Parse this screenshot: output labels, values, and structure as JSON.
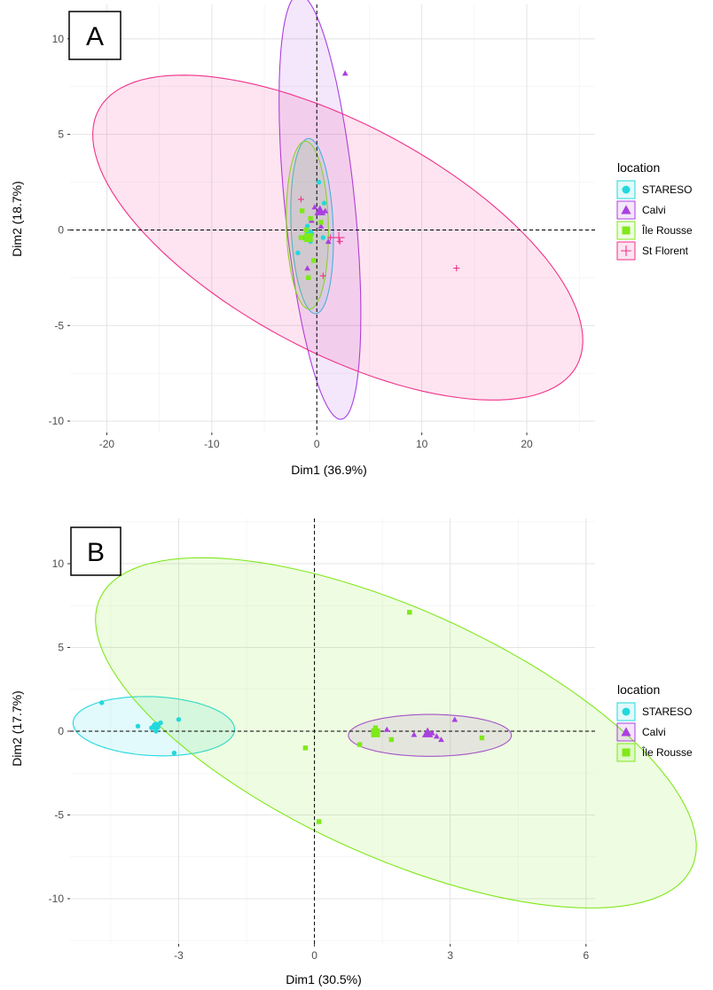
{
  "colors": {
    "STARESO": "#22d8de",
    "Calvi": "#a93fe0",
    "Île Rousse": "#7fe81a",
    "St Florent": "#f0328a"
  },
  "chart_data": [
    {
      "type": "scatter",
      "panel_label": "A",
      "xlabel": "Dim1 (36.9%)",
      "ylabel": "Dim2 (18.7%)",
      "xlim": [
        -23.5,
        26.5
      ],
      "ylim": [
        -10.6,
        11.8
      ],
      "xticks": [
        -20,
        -10,
        0,
        10,
        20
      ],
      "yticks": [
        -10,
        -5,
        0,
        5,
        10
      ],
      "grid": true,
      "reference_lines": {
        "x": 0,
        "y": 0
      },
      "legend": {
        "title": "location",
        "position": "right",
        "entries": [
          "STARESO",
          "Calvi",
          "Île Rousse",
          "St Florent"
        ]
      },
      "series": [
        {
          "name": "STARESO",
          "marker": "circle",
          "points": [
            [
              0.2,
              2.5
            ],
            [
              -1.8,
              -1.2
            ],
            [
              0.6,
              -0.4
            ],
            [
              -0.6,
              -0.6
            ],
            [
              0.3,
              0.9
            ],
            [
              -0.9,
              0.2
            ],
            [
              -1.2,
              -0.4
            ],
            [
              0.7,
              1.4
            ]
          ],
          "centroid": [
            -0.7,
            -0.2
          ],
          "ellipse": {
            "cx": -0.45,
            "cy": 0.2,
            "rx": 2.0,
            "ry": 4.6,
            "angle": 5
          }
        },
        {
          "name": "Calvi",
          "marker": "triangle",
          "points": [
            [
              2.7,
              8.2
            ],
            [
              -0.9,
              -2.0
            ],
            [
              1.1,
              -0.6
            ],
            [
              0.4,
              0.2
            ],
            [
              -0.5,
              0.5
            ],
            [
              0.8,
              1.0
            ],
            [
              -0.2,
              1.2
            ]
          ],
          "centroid": [
            0.3,
            1.0
          ],
          "ellipse": {
            "cx": 0.3,
            "cy": 1.2,
            "rx": 3.3,
            "ry": 11.3,
            "angle": 11
          }
        },
        {
          "name": "Île Rousse",
          "marker": "square",
          "points": [
            [
              -1.4,
              1.0
            ],
            [
              -0.8,
              -2.5
            ],
            [
              -0.3,
              -1.6
            ],
            [
              -1.0,
              0.0
            ],
            [
              0.4,
              0.4
            ],
            [
              -1.5,
              -0.4
            ],
            [
              -0.6,
              0.6
            ]
          ],
          "centroid": [
            -0.8,
            -0.4
          ],
          "ellipse": {
            "cx": -0.9,
            "cy": 0.25,
            "rx": 2.0,
            "ry": 4.4,
            "angle": 3
          }
        },
        {
          "name": "St Florent",
          "marker": "plus",
          "points": [
            [
              13.3,
              -2.0
            ],
            [
              -1.5,
              1.6
            ],
            [
              2.2,
              -0.6
            ],
            [
              1.3,
              -0.4
            ],
            [
              0.6,
              -2.4
            ]
          ],
          "centroid": [
            2.1,
            -0.4
          ],
          "ellipse": {
            "cx": 2.0,
            "cy": -0.4,
            "rx": 24.0,
            "ry": 6.4,
            "angle": -14
          }
        }
      ]
    },
    {
      "type": "scatter",
      "panel_label": "B",
      "xlabel": "Dim1 (30.5%)",
      "ylabel": "Dim2 (17.7%)",
      "xlim": [
        -5.4,
        6.2
      ],
      "ylim": [
        -12.7,
        12.7
      ],
      "xticks": [
        -3,
        0,
        3,
        6
      ],
      "yticks": [
        -10,
        -5,
        0,
        5,
        10
      ],
      "grid": true,
      "reference_lines": {
        "x": 0,
        "y": 0
      },
      "legend": {
        "title": "location",
        "position": "right",
        "entries": [
          "STARESO",
          "Calvi",
          "Île Rousse"
        ]
      },
      "series": [
        {
          "name": "STARESO",
          "marker": "circle",
          "points": [
            [
              -4.7,
              1.7
            ],
            [
              -3.9,
              0.3
            ],
            [
              -3.4,
              0.5
            ],
            [
              -3.0,
              0.7
            ],
            [
              -3.5,
              0.0
            ],
            [
              -3.6,
              0.2
            ],
            [
              -3.1,
              -1.3
            ]
          ],
          "centroid": [
            -3.5,
            0.3
          ],
          "ellipse": {
            "cx": -3.55,
            "cy": 0.3,
            "rx": 1.87,
            "ry": 1.68,
            "angle": -43
          }
        },
        {
          "name": "Calvi",
          "marker": "triangle",
          "points": [
            [
              3.1,
              0.7
            ],
            [
              2.2,
              -0.2
            ],
            [
              2.6,
              -0.1
            ],
            [
              2.7,
              -0.3
            ],
            [
              2.8,
              -0.5
            ],
            [
              1.6,
              0.1
            ],
            [
              2.5,
              0.0
            ]
          ],
          "centroid": [
            2.5,
            -0.1
          ],
          "ellipse": {
            "cx": 2.55,
            "cy": -0.25,
            "rx": 1.8,
            "ry": 1.25,
            "angle": 0
          }
        },
        {
          "name": "Île Rousse",
          "marker": "square",
          "points": [
            [
              2.1,
              7.1
            ],
            [
              -0.2,
              -1.0
            ],
            [
              0.1,
              -5.4
            ],
            [
              1.0,
              -0.8
            ],
            [
              1.7,
              -0.5
            ],
            [
              3.7,
              -0.4
            ],
            [
              1.35,
              0.2
            ]
          ],
          "centroid": [
            1.35,
            -0.1
          ],
          "ellipse": {
            "cx": 1.8,
            "cy": -0.1,
            "rx": 4.6,
            "ry": 11.5,
            "angle": 27
          }
        }
      ]
    }
  ]
}
